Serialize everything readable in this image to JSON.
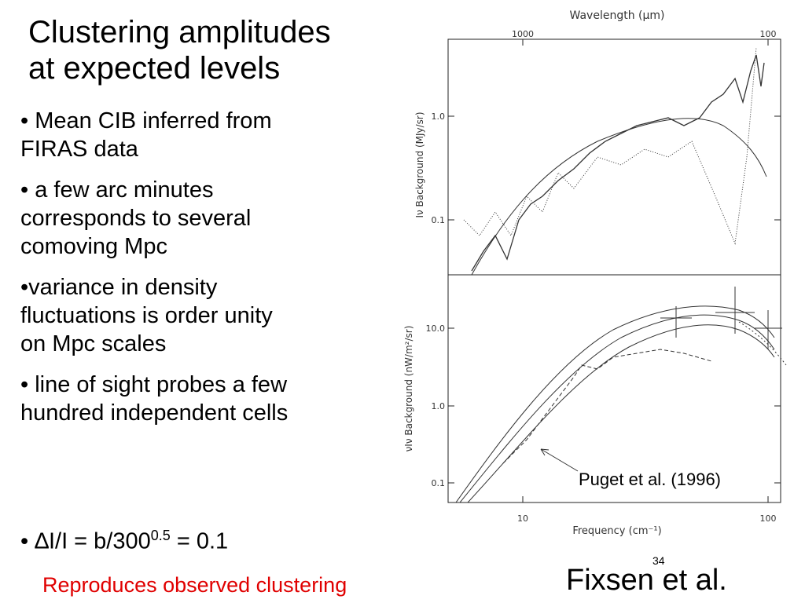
{
  "slide": {
    "title": [
      "Clustering amplitudes",
      "at expected levels"
    ],
    "bullets": [
      {
        "lines": [
          "• Mean CIB inferred from",
          "FIRAS data"
        ]
      },
      {
        "lines": [
          "• a few arc minutes",
          "corresponds to several",
          "comoving Mpc"
        ]
      },
      {
        "lines": [
          "•variance in density",
          "fluctuations is order unity",
          "on Mpc scales"
        ]
      },
      {
        "lines": [
          "• line of sight probes a few",
          "hundred independent cells"
        ]
      }
    ],
    "formula": {
      "prefix": "• ∆I/I = b/300",
      "exponent": "0.5",
      "suffix": " = 0.1"
    },
    "note": "Reproduces observed clustering",
    "page_number": "34",
    "credit": "Fixsen et al."
  },
  "figure": {
    "top_axis_label": "Wavelength (μm)",
    "top_ticks": [
      "1000",
      "100"
    ],
    "upper_y_label": "Iν Background (MJy/sr)",
    "upper_y_ticks": [
      "1.0",
      "0.1"
    ],
    "lower_y_label": "νIν Background (nW/m²/sr)",
    "lower_y_ticks": [
      "10.0",
      "1.0",
      "0.1"
    ],
    "x_label": "Frequency (cm⁻¹)",
    "x_ticks": [
      "10",
      "100"
    ],
    "annotation": "Puget et al. (1996)"
  }
}
